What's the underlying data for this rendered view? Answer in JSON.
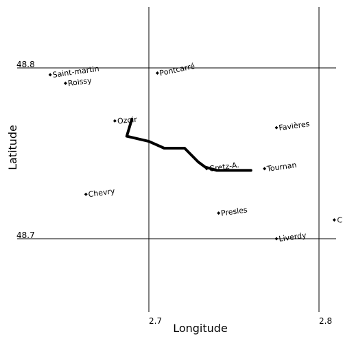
{
  "map": {
    "x_axis_label": "Longitude",
    "y_axis_label": "Latitude",
    "lon_range": [
      2.642,
      2.81
    ],
    "lat_range": [
      48.66,
      48.815
    ],
    "lon_ticks": [
      {
        "value": 2.7,
        "label": "2.7"
      },
      {
        "value": 2.8,
        "label": "2.8"
      }
    ],
    "lat_ticks": [
      {
        "value": 48.8,
        "label": "48.8"
      },
      {
        "value": 48.7,
        "label": "48.7"
      }
    ],
    "towns": [
      {
        "name": "Saint-martin",
        "lon": 2.642,
        "lat": 48.796,
        "label_angle": -8
      },
      {
        "name": "Roissy",
        "lon": 2.651,
        "lat": 48.791,
        "label_angle": -8
      },
      {
        "name": "Pontcarré",
        "lon": 2.705,
        "lat": 48.797,
        "label_angle": -12
      },
      {
        "name": "Ozoir",
        "lon": 2.68,
        "lat": 48.769,
        "label_angle": -5
      },
      {
        "name": "Favières",
        "lon": 2.775,
        "lat": 48.765,
        "label_angle": -8
      },
      {
        "name": "Gretz-A.",
        "lon": 2.734,
        "lat": 48.741,
        "label_angle": -8
      },
      {
        "name": "Tournan",
        "lon": 2.768,
        "lat": 48.741,
        "label_angle": -8
      },
      {
        "name": "Chevry",
        "lon": 2.663,
        "lat": 48.726,
        "label_angle": -8
      },
      {
        "name": "Presles",
        "lon": 2.741,
        "lat": 48.715,
        "label_angle": -8
      },
      {
        "name": "Liverdy",
        "lon": 2.775,
        "lat": 48.7,
        "label_angle": -8
      },
      {
        "name": "C",
        "lon": 2.809,
        "lat": 48.711,
        "label_angle": 0
      }
    ],
    "route": [
      [
        2.69,
        48.77
      ],
      [
        2.687,
        48.76
      ],
      [
        2.7,
        48.757
      ],
      [
        2.709,
        48.753
      ],
      [
        2.721,
        48.753
      ],
      [
        2.729,
        48.745
      ],
      [
        2.733,
        48.742
      ],
      [
        2.74,
        48.74
      ],
      [
        2.76,
        48.74
      ]
    ]
  }
}
